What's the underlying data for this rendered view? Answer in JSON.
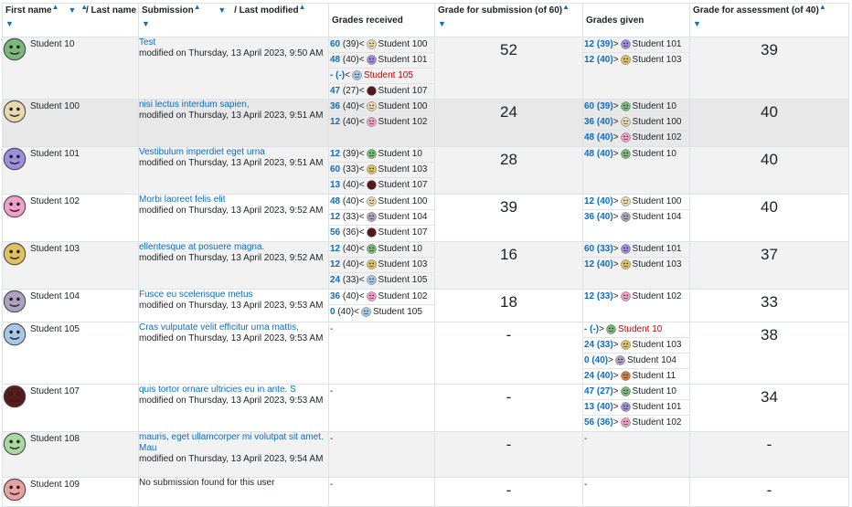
{
  "headers": {
    "first_name": "First name",
    "last_name": "/ Last name",
    "submission": "Submission",
    "last_modified": "/ Last modified",
    "grades_received": "Grades received",
    "grade_submission": "Grade for submission (of 60)",
    "grades_given": "Grades given",
    "grade_assessment": "Grade for assessment (of 40)"
  },
  "rows": [
    {
      "name": "Student 10",
      "avatar_color": "#7ab87a",
      "title": "Test",
      "modified": "modified on Thursday, 13 April 2023, 9:50 AM",
      "received": [
        {
          "grade": "60",
          "paren": "(39)",
          "dir": "<",
          "student": "Student 100",
          "color": "#e8d8b0"
        },
        {
          "grade": "48",
          "paren": "(40)",
          "dir": "<",
          "student": "Student 101",
          "color": "#9d8ee0"
        },
        {
          "grade": "-",
          "paren": "(-)",
          "dir": "<",
          "student": "Student 105",
          "color": "#a8c8e8",
          "red": true
        },
        {
          "grade": "47",
          "paren": "(27)",
          "dir": "<",
          "student": "Student 107",
          "color": "#5a1a1a"
        }
      ],
      "sub_grade": "52",
      "given": [
        {
          "grade": "12",
          "paren": "(39)",
          "dir": ">",
          "student": "Student 101",
          "color": "#9d8ee0"
        },
        {
          "grade": "12",
          "paren": "(40)",
          "dir": ">",
          "student": "Student 103",
          "color": "#e0c060"
        }
      ],
      "assess_grade": "39"
    },
    {
      "name": "Student 100",
      "avatar_color": "#e8d8b0",
      "title": "nisi lectus interdum sapien,",
      "modified": "modified on Thursday, 13 April 2023, 9:51 AM",
      "received": [
        {
          "grade": "36",
          "paren": "(40)",
          "dir": "<",
          "student": "Student 100",
          "color": "#e8d8b0"
        },
        {
          "grade": "12",
          "paren": "(40)",
          "dir": "<",
          "student": "Student 102",
          "color": "#f0a0c8"
        }
      ],
      "sub_grade": "24",
      "given": [
        {
          "grade": "60",
          "paren": "(39)",
          "dir": ">",
          "student": "Student 10",
          "color": "#7ab87a"
        },
        {
          "grade": "36",
          "paren": "(40)",
          "dir": ">",
          "student": "Student 100",
          "color": "#e8d8b0"
        },
        {
          "grade": "48",
          "paren": "(40)",
          "dir": ">",
          "student": "Student 102",
          "color": "#f0a0c8"
        }
      ],
      "assess_grade": "40"
    },
    {
      "name": "Student 101",
      "avatar_color": "#9d8ee0",
      "title": "Vestibulum imperdiet eget urna",
      "modified": "modified on Thursday, 13 April 2023, 9:51 AM",
      "received": [
        {
          "grade": "12",
          "paren": "(39)",
          "dir": "<",
          "student": "Student 10",
          "color": "#7ab87a"
        },
        {
          "grade": "60",
          "paren": "(33)",
          "dir": "<",
          "student": "Student 103",
          "color": "#e0c060"
        },
        {
          "grade": "13",
          "paren": "(40)",
          "dir": "<",
          "student": "Student 107",
          "color": "#5a1a1a"
        }
      ],
      "sub_grade": "28",
      "given": [
        {
          "grade": "48",
          "paren": "(40)",
          "dir": ">",
          "student": "Student 10",
          "color": "#7ab87a"
        }
      ],
      "assess_grade": "40"
    },
    {
      "name": "Student 102",
      "avatar_color": "#f0a0c8",
      "title": "Morbi laoreet felis elit",
      "modified": "modified on Thursday, 13 April 2023, 9:52 AM",
      "received": [
        {
          "grade": "48",
          "paren": "(40)",
          "dir": "<",
          "student": "Student 100",
          "color": "#e8d8b0"
        },
        {
          "grade": "12",
          "paren": "(33)",
          "dir": "<",
          "student": "Student 104",
          "color": "#b0a0c0"
        },
        {
          "grade": "56",
          "paren": "(36)",
          "dir": "<",
          "student": "Student 107",
          "color": "#5a1a1a"
        }
      ],
      "sub_grade": "39",
      "given": [
        {
          "grade": "12",
          "paren": "(40)",
          "dir": ">",
          "student": "Student 100",
          "color": "#e8d8b0"
        },
        {
          "grade": "36",
          "paren": "(40)",
          "dir": ">",
          "student": "Student 104",
          "color": "#b0a0c0"
        }
      ],
      "assess_grade": "40"
    },
    {
      "name": "Student 103",
      "avatar_color": "#e0c060",
      "title": "ellentesque at posuere magna.",
      "modified": "modified on Thursday, 13 April 2023, 9:52 AM",
      "received": [
        {
          "grade": "12",
          "paren": "(40)",
          "dir": "<",
          "student": "Student 10",
          "color": "#7ab87a"
        },
        {
          "grade": "12",
          "paren": "(40)",
          "dir": "<",
          "student": "Student 103",
          "color": "#e0c060"
        },
        {
          "grade": "24",
          "paren": "(33)",
          "dir": "<",
          "student": "Student 105",
          "color": "#a8c8e8"
        }
      ],
      "sub_grade": "16",
      "given": [
        {
          "grade": "60",
          "paren": "(33)",
          "dir": ">",
          "student": "Student 101",
          "color": "#9d8ee0"
        },
        {
          "grade": "12",
          "paren": "(40)",
          "dir": ">",
          "student": "Student 103",
          "color": "#e0c060"
        }
      ],
      "assess_grade": "37"
    },
    {
      "name": "Student 104",
      "avatar_color": "#b0a0c0",
      "title": "Fusce eu scelerisque metus",
      "modified": "modified on Thursday, 13 April 2023, 9:53 AM",
      "received": [
        {
          "grade": "36",
          "paren": "(40)",
          "dir": "<",
          "student": "Student 102",
          "color": "#f0a0c8"
        },
        {
          "grade": "0",
          "paren": "(40)",
          "dir": "<",
          "student": "Student 105",
          "color": "#a8c8e8"
        }
      ],
      "sub_grade": "18",
      "given": [
        {
          "grade": "12",
          "paren": "(33)",
          "dir": ">",
          "student": "Student 102",
          "color": "#f0a0c8"
        }
      ],
      "assess_grade": "33"
    },
    {
      "name": "Student 105",
      "avatar_color": "#a8c8e8",
      "title": "Cras vulputate velit efficitur urna mattis,",
      "modified": "modified on Thursday, 13 April 2023, 9:53 AM",
      "received_dash": "-",
      "sub_grade": "-",
      "given": [
        {
          "grade": "-",
          "paren": "(-)",
          "dir": ">",
          "student": "Student 10",
          "color": "#7ab87a",
          "red": true
        },
        {
          "grade": "24",
          "paren": "(33)",
          "dir": ">",
          "student": "Student 103",
          "color": "#e0c060"
        },
        {
          "grade": "0",
          "paren": "(40)",
          "dir": ">",
          "student": "Student 104",
          "color": "#b0a0c0"
        },
        {
          "grade": "24",
          "paren": "(40)",
          "dir": ">",
          "student": "Student 11",
          "color": "#d08040"
        }
      ],
      "assess_grade": "38"
    },
    {
      "name": "Student 107",
      "avatar_color": "#5a1a1a",
      "title": "quis tortor ornare ultricies eu in ante. S",
      "modified": "modified on Thursday, 13 April 2023, 9:53 AM",
      "received_dash": "-",
      "sub_grade": "-",
      "given": [
        {
          "grade": "47",
          "paren": "(27)",
          "dir": ">",
          "student": "Student 10",
          "color": "#7ab87a"
        },
        {
          "grade": "13",
          "paren": "(40)",
          "dir": ">",
          "student": "Student 101",
          "color": "#9d8ee0"
        },
        {
          "grade": "56",
          "paren": "(36)",
          "dir": ">",
          "student": "Student 102",
          "color": "#f0a0c8"
        }
      ],
      "assess_grade": "34"
    },
    {
      "name": "Student 108",
      "avatar_color": "#a8d8a0",
      "title": "mauris, eget ullamcorper mi volutpat sit amet. Mau",
      "modified": "modified on Thursday, 13 April 2023, 9:54 AM",
      "received_dash": "-",
      "sub_grade": "-",
      "given_dash": "-",
      "assess_grade": "-"
    },
    {
      "name": "Student 109",
      "avatar_color": "#e8a0a0",
      "title": "",
      "modified": "No submission found for this user",
      "received_dash": "-",
      "sub_grade": "-",
      "given_dash": "-",
      "assess_grade": "-"
    }
  ]
}
